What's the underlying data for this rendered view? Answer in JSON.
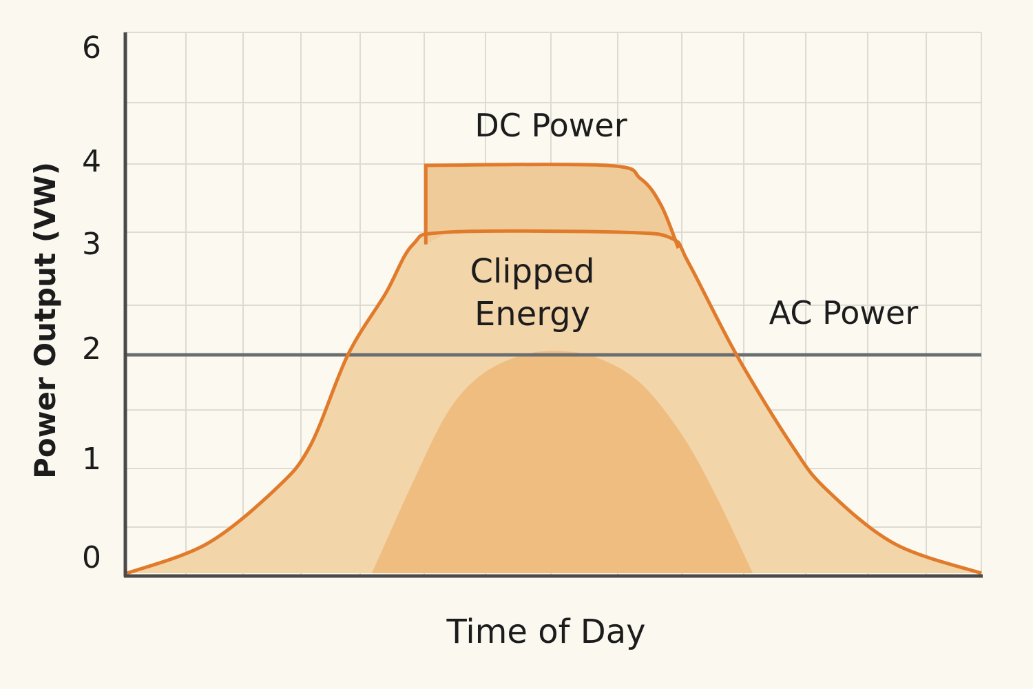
{
  "chart_data": {
    "type": "area",
    "title": "",
    "xlabel": "Time of Day",
    "ylabel": "Power Output (VW)",
    "yticks": [
      "0",
      "1",
      "2",
      "3",
      "4",
      "6"
    ],
    "xlim": [
      0,
      100
    ],
    "ylim": [
      0,
      6
    ],
    "grid": true,
    "colors": {
      "background": "#fbf8ef",
      "line": "#e07b2c",
      "ac_fill": "#f3d5aa",
      "dc_fill": "#f0cb9a",
      "inner_fill": "#eeb676",
      "clip_line": "#6b6e70",
      "axis": "#4a4a4a",
      "grid": "#dedbd2"
    },
    "clip_limit": 2,
    "series": [
      {
        "name": "AC Power",
        "x": [
          0.2,
          9.5,
          17.5,
          21.6,
          26,
          30.4,
          33.6,
          37.7,
          57.8,
          63.8,
          65.8,
          71.4,
          77.9,
          81.9,
          89.9,
          100
        ],
        "y": [
          0,
          0.28,
          0.8,
          1.2,
          2,
          2.5,
          2.9,
          3,
          3,
          2.95,
          2.75,
          2,
          1.2,
          0.8,
          0.28,
          0
        ]
      },
      {
        "name": "DC Power",
        "x": [
          35.1,
          35.1,
          56.2,
          60.2,
          62.6,
          64.6
        ],
        "y": [
          2.9,
          4,
          4,
          3.8,
          3.4,
          2.87
        ]
      },
      {
        "x": [
          28.8,
          33.6,
          37.7,
          41.7,
          46.5,
          50.9,
          55.3,
          60.2,
          65,
          69,
          73.3
        ],
        "y": [
          0,
          0.87,
          1.5,
          1.83,
          2,
          2.03,
          1.97,
          1.75,
          1.3,
          0.74,
          0
        ]
      }
    ],
    "annotations": {
      "dc": "DC Power",
      "clipped_line1": "Clipped",
      "clipped_line2": "Energy",
      "ac": "AC Power"
    }
  }
}
